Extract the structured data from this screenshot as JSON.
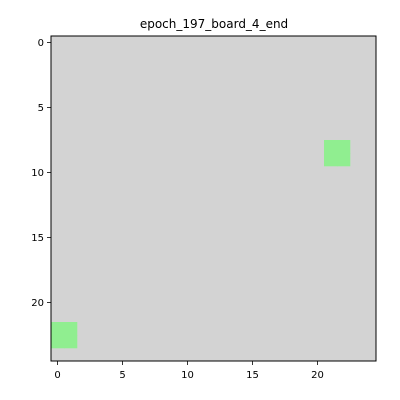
{
  "chart_data": {
    "type": "heatmap",
    "title": "epoch_197_board_4_end",
    "xlabel": "",
    "ylabel": "",
    "grid": false,
    "legend": "none",
    "rows": 25,
    "cols": 25,
    "xlim": [
      -0.5,
      24.5
    ],
    "ylim": [
      24.5,
      -0.5
    ],
    "y_axis_inverted": true,
    "x_ticks": [
      0,
      5,
      10,
      15,
      20
    ],
    "y_ticks": [
      0,
      5,
      10,
      15,
      20
    ],
    "x_tick_labels": [
      "0",
      "5",
      "10",
      "15",
      "20"
    ],
    "y_tick_labels": [
      "0",
      "5",
      "10",
      "15",
      "20"
    ],
    "background_color": "#d3d3d3",
    "cell_color": "#90ee90",
    "cells": [
      {
        "row": 8,
        "col": 21
      },
      {
        "row": 8,
        "col": 22
      },
      {
        "row": 9,
        "col": 21
      },
      {
        "row": 9,
        "col": 22
      },
      {
        "row": 22,
        "col": 0
      },
      {
        "row": 22,
        "col": 1
      },
      {
        "row": 23,
        "col": 0
      },
      {
        "row": 23,
        "col": 1
      }
    ]
  }
}
